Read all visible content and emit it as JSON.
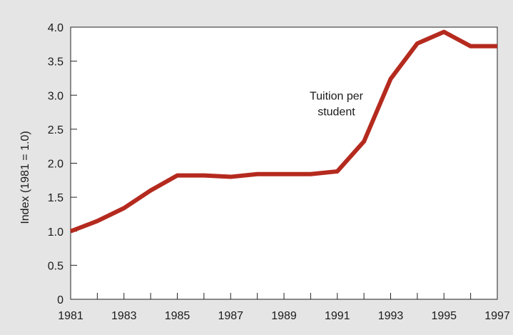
{
  "chart_data": {
    "type": "line",
    "title": "",
    "xlabel": "",
    "ylabel": "Index (1981 = 1.0)",
    "x": [
      1981,
      1982,
      1983,
      1984,
      1985,
      1986,
      1987,
      1988,
      1989,
      1990,
      1991,
      1992,
      1993,
      1994,
      1995,
      1996,
      1997
    ],
    "series": [
      {
        "name": "",
        "color": "#b52a1e",
        "values": [
          1.0,
          1.15,
          1.34,
          1.6,
          1.82,
          1.82,
          1.8,
          1.84,
          1.84,
          1.84,
          1.88,
          2.32,
          3.24,
          3.76,
          3.93,
          3.72,
          3.72
        ]
      }
    ],
    "xlim": [
      1981,
      1997
    ],
    "ylim": [
      0,
      4.0
    ],
    "xticks_labeled": [
      1981,
      1983,
      1985,
      1987,
      1989,
      1991,
      1993,
      1995,
      1997
    ],
    "xtick_labels": [
      "1981",
      "1983",
      "1985",
      "1987",
      "1989",
      "1991",
      "1993",
      "1995",
      "1997"
    ],
    "yticks": [
      0,
      0.5,
      1.0,
      1.5,
      2.0,
      2.5,
      3.0,
      3.5,
      4.0
    ],
    "ytick_labels": [
      "0",
      "0.5",
      "1.0",
      "1.5",
      "2.0",
      "2.5",
      "3.0",
      "3.5",
      "4.0"
    ],
    "annotations": [
      {
        "lines": [
          "Tuition per",
          "student"
        ],
        "x": 1991.5,
        "y": 2.8
      }
    ],
    "grid": false,
    "legend": "none"
  }
}
